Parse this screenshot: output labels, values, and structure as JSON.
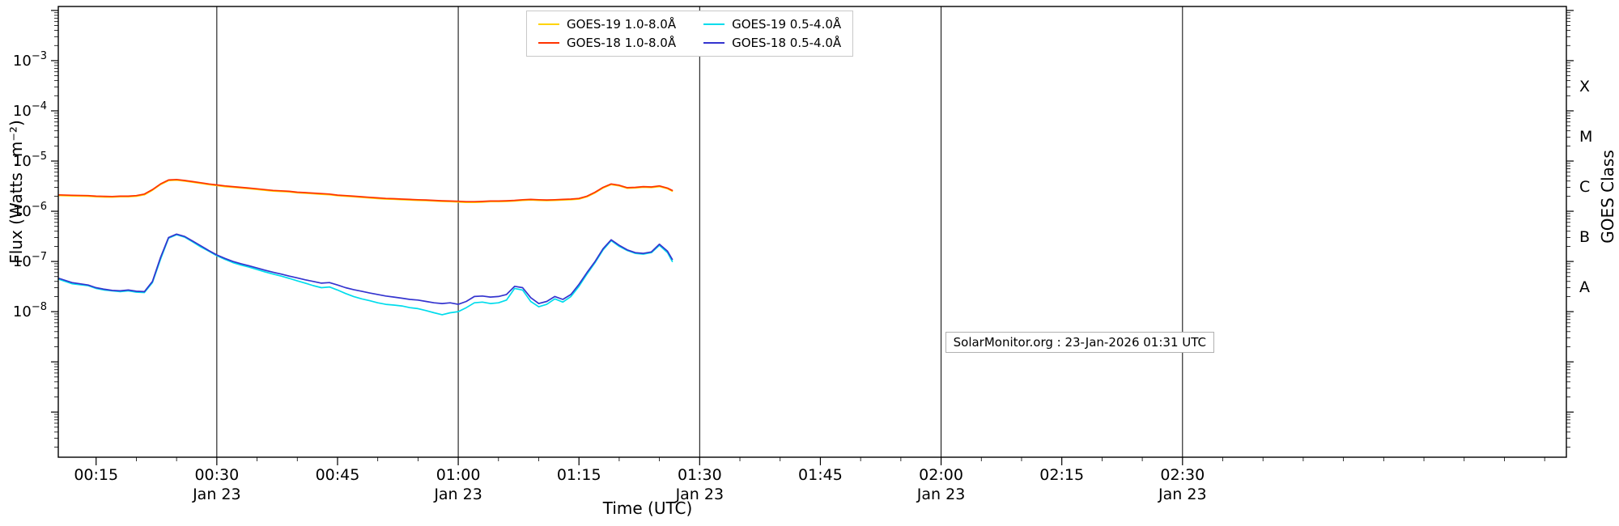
{
  "labels": {
    "xlabel": "Time (UTC)",
    "ylabel": "Flux (Watts · m⁻²)",
    "right_axis_label": "GOES Class"
  },
  "credit": "SolarMonitor.org : 23-Jan-2026 01:31 UTC",
  "legend": {
    "location": "upper center",
    "items": [
      {
        "label": "GOES-19 1.0-8.0Å",
        "color": "#ffd400"
      },
      {
        "label": "GOES-18 1.0-8.0Å",
        "color": "#ff3300"
      },
      {
        "label": "GOES-19 0.5-4.0Å",
        "color": "#00dcec"
      },
      {
        "label": "GOES-18 0.5-4.0Å",
        "color": "#3434cf"
      }
    ]
  },
  "chart_data": {
    "type": "line",
    "title": "",
    "xlabel": "Time (UTC)",
    "ylabel": "Flux (Watts · m⁻²)",
    "right_axis_label": "GOES Class",
    "x_units": "minutes after 00:00 UTC, 23-Jan-2026",
    "y_units": "Watts per square metre, log scale",
    "xlim_minutes": [
      10.3,
      197.7
    ],
    "ylim": [
      1.26e-11,
      0.012
    ],
    "grid": "vertical lines at 30-minute date ticks",
    "gridlines": {
      "vertical_at_minutes": [
        30,
        60,
        90,
        120,
        150
      ]
    },
    "x_ticks": [
      {
        "minutes": 15,
        "label": "00:15",
        "date_label": ""
      },
      {
        "minutes": 30,
        "label": "00:30",
        "date_label": "Jan 23"
      },
      {
        "minutes": 45,
        "label": "00:45",
        "date_label": ""
      },
      {
        "minutes": 60,
        "label": "01:00",
        "date_label": "Jan 23"
      },
      {
        "minutes": 75,
        "label": "01:15",
        "date_label": ""
      },
      {
        "minutes": 90,
        "label": "01:30",
        "date_label": "Jan 23"
      },
      {
        "minutes": 105,
        "label": "01:45",
        "date_label": ""
      },
      {
        "minutes": 120,
        "label": "02:00",
        "date_label": "Jan 23"
      },
      {
        "minutes": 135,
        "label": "02:15",
        "date_label": ""
      },
      {
        "minutes": 150,
        "label": "02:30",
        "date_label": "Jan 23"
      }
    ],
    "y_ticks": [
      {
        "value": 0.001,
        "exponent": -3,
        "label": "10⁻³"
      },
      {
        "value": 0.0001,
        "exponent": -4,
        "label": "10⁻⁴"
      },
      {
        "value": 1e-05,
        "exponent": -5,
        "label": "10⁻⁵"
      },
      {
        "value": 1e-06,
        "exponent": -6,
        "label": "10⁻⁶"
      },
      {
        "value": 1e-07,
        "exponent": -7,
        "label": "10⁻⁷"
      },
      {
        "value": 1e-08,
        "exponent": -8,
        "label": "10⁻⁸"
      }
    ],
    "goes_class_labels": [
      {
        "value": 0.000316,
        "label": "X"
      },
      {
        "value": 3.16e-05,
        "label": "M"
      },
      {
        "value": 3.16e-06,
        "label": "C"
      },
      {
        "value": 3.16e-07,
        "label": "B"
      },
      {
        "value": 3.16e-08,
        "label": "A"
      }
    ],
    "x_minutes": [
      10.4,
      12,
      14,
      15,
      16,
      17,
      18,
      19,
      20,
      21,
      22,
      23,
      24,
      25,
      26,
      27,
      28,
      29,
      30,
      31,
      32,
      33,
      34,
      35,
      36,
      37,
      38,
      39,
      40,
      41,
      42,
      43,
      44,
      45,
      46,
      47,
      48,
      49,
      50,
      51,
      52,
      53,
      54,
      55,
      56,
      57,
      58,
      59,
      60,
      61,
      62,
      63,
      64,
      65,
      66,
      67,
      68,
      69,
      70,
      71,
      72,
      73,
      74,
      75,
      76,
      77,
      78,
      79,
      80,
      81,
      82,
      83,
      84,
      85,
      86,
      86.6
    ],
    "series": [
      {
        "name": "GOES-19 1.0-8.0Å",
        "slug": "goes19-long",
        "color": "#ffd400",
        "values": [
          2.06e-06,
          2.02e-06,
          1.99e-06,
          1.94e-06,
          1.92e-06,
          1.91e-06,
          1.94e-06,
          1.94e-06,
          1.99e-06,
          2.13e-06,
          2.62e-06,
          3.4e-06,
          4.07e-06,
          4.17e-06,
          3.98e-06,
          3.78e-06,
          3.59e-06,
          3.4e-06,
          3.25e-06,
          3.1e-06,
          3.01e-06,
          2.91e-06,
          2.81e-06,
          2.72e-06,
          2.62e-06,
          2.52e-06,
          2.47e-06,
          2.43e-06,
          2.33e-06,
          2.28e-06,
          2.23e-06,
          2.18e-06,
          2.13e-06,
          2.04e-06,
          1.99e-06,
          1.94e-06,
          1.89e-06,
          1.84e-06,
          1.79e-06,
          1.75e-06,
          1.73e-06,
          1.7e-06,
          1.67e-06,
          1.65e-06,
          1.63e-06,
          1.6e-06,
          1.57e-06,
          1.55e-06,
          1.53e-06,
          1.5e-06,
          1.5e-06,
          1.52e-06,
          1.55e-06,
          1.55e-06,
          1.57e-06,
          1.6e-06,
          1.65e-06,
          1.67e-06,
          1.65e-06,
          1.63e-06,
          1.65e-06,
          1.67e-06,
          1.7e-06,
          1.75e-06,
          1.94e-06,
          2.33e-06,
          2.91e-06,
          3.4e-06,
          3.2e-06,
          2.86e-06,
          2.91e-06,
          3.01e-06,
          2.96e-06,
          3.1e-06,
          2.81e-06,
          2.52e-06
        ]
      },
      {
        "name": "GOES-18 1.0-8.0Å",
        "slug": "goes18-long",
        "color": "#ff3300",
        "values": [
          2.12e-06,
          2.08e-06,
          2.05e-06,
          2e-06,
          1.98e-06,
          1.97e-06,
          2e-06,
          2e-06,
          2.05e-06,
          2.2e-06,
          2.7e-06,
          3.5e-06,
          4.2e-06,
          4.3e-06,
          4.1e-06,
          3.9e-06,
          3.7e-06,
          3.5e-06,
          3.35e-06,
          3.2e-06,
          3.1e-06,
          3e-06,
          2.9e-06,
          2.8e-06,
          2.7e-06,
          2.6e-06,
          2.55e-06,
          2.5e-06,
          2.4e-06,
          2.35e-06,
          2.3e-06,
          2.25e-06,
          2.2e-06,
          2.1e-06,
          2.05e-06,
          2e-06,
          1.95e-06,
          1.9e-06,
          1.85e-06,
          1.8e-06,
          1.78e-06,
          1.75e-06,
          1.72e-06,
          1.7e-06,
          1.68e-06,
          1.65e-06,
          1.62e-06,
          1.6e-06,
          1.58e-06,
          1.55e-06,
          1.55e-06,
          1.57e-06,
          1.6e-06,
          1.6e-06,
          1.62e-06,
          1.65e-06,
          1.7e-06,
          1.72e-06,
          1.7e-06,
          1.68e-06,
          1.7e-06,
          1.72e-06,
          1.75e-06,
          1.8e-06,
          2e-06,
          2.4e-06,
          3e-06,
          3.5e-06,
          3.3e-06,
          2.95e-06,
          3e-06,
          3.1e-06,
          3.05e-06,
          3.2e-06,
          2.9e-06,
          2.6e-06
        ]
      },
      {
        "name": "GOES-19 0.5-4.0Å",
        "slug": "goes19-short",
        "color": "#00dcec",
        "values": [
          4.4e-08,
          3.6e-08,
          3.3e-08,
          2.9e-08,
          2.7e-08,
          2.6e-08,
          2.5e-08,
          2.6e-08,
          2.45e-08,
          2.4e-08,
          3.8e-08,
          1.1e-07,
          2.9e-07,
          3.4e-07,
          3.05e-07,
          2.45e-07,
          1.95e-07,
          1.6e-07,
          1.3e-07,
          1.1e-07,
          9.5e-08,
          8.5e-08,
          7.7e-08,
          6.9e-08,
          6.2e-08,
          5.6e-08,
          5.1e-08,
          4.6e-08,
          4.1e-08,
          3.7e-08,
          3.3e-08,
          3e-08,
          3.1e-08,
          2.7e-08,
          2.3e-08,
          2e-08,
          1.8e-08,
          1.65e-08,
          1.5e-08,
          1.4e-08,
          1.35e-08,
          1.3e-08,
          1.2e-08,
          1.15e-08,
          1.05e-08,
          9.5e-09,
          8.7e-09,
          9.5e-09,
          1e-08,
          1.2e-08,
          1.5e-08,
          1.55e-08,
          1.45e-08,
          1.5e-08,
          1.7e-08,
          2.9e-08,
          2.7e-08,
          1.6e-08,
          1.25e-08,
          1.4e-08,
          1.8e-08,
          1.55e-08,
          2e-08,
          3.2e-08,
          5.6e-08,
          9.5e-08,
          1.7e-07,
          2.6e-07,
          2e-07,
          1.65e-07,
          1.45e-07,
          1.4e-07,
          1.5e-07,
          2.1e-07,
          1.5e-07,
          1e-07
        ]
      },
      {
        "name": "GOES-18 0.5-4.0Å",
        "slug": "goes18-short",
        "color": "#3434cf",
        "values": [
          4.6e-08,
          3.8e-08,
          3.4e-08,
          3e-08,
          2.8e-08,
          2.65e-08,
          2.6e-08,
          2.7e-08,
          2.55e-08,
          2.5e-08,
          4e-08,
          1.2e-07,
          3e-07,
          3.5e-07,
          3.15e-07,
          2.55e-07,
          2.05e-07,
          1.65e-07,
          1.35e-07,
          1.15e-07,
          1e-07,
          9e-08,
          8.2e-08,
          7.4e-08,
          6.7e-08,
          6.1e-08,
          5.6e-08,
          5.1e-08,
          4.7e-08,
          4.3e-08,
          4e-08,
          3.7e-08,
          3.8e-08,
          3.4e-08,
          3e-08,
          2.75e-08,
          2.55e-08,
          2.35e-08,
          2.2e-08,
          2.05e-08,
          1.95e-08,
          1.85e-08,
          1.75e-08,
          1.7e-08,
          1.6e-08,
          1.5e-08,
          1.45e-08,
          1.5e-08,
          1.4e-08,
          1.6e-08,
          2e-08,
          2.05e-08,
          1.95e-08,
          2e-08,
          2.2e-08,
          3.2e-08,
          3e-08,
          1.9e-08,
          1.45e-08,
          1.6e-08,
          2e-08,
          1.75e-08,
          2.2e-08,
          3.5e-08,
          6e-08,
          1e-07,
          1.8e-07,
          2.7e-07,
          2.1e-07,
          1.7e-07,
          1.5e-07,
          1.45e-07,
          1.55e-07,
          2.2e-07,
          1.6e-07,
          1.1e-07
        ]
      }
    ]
  }
}
